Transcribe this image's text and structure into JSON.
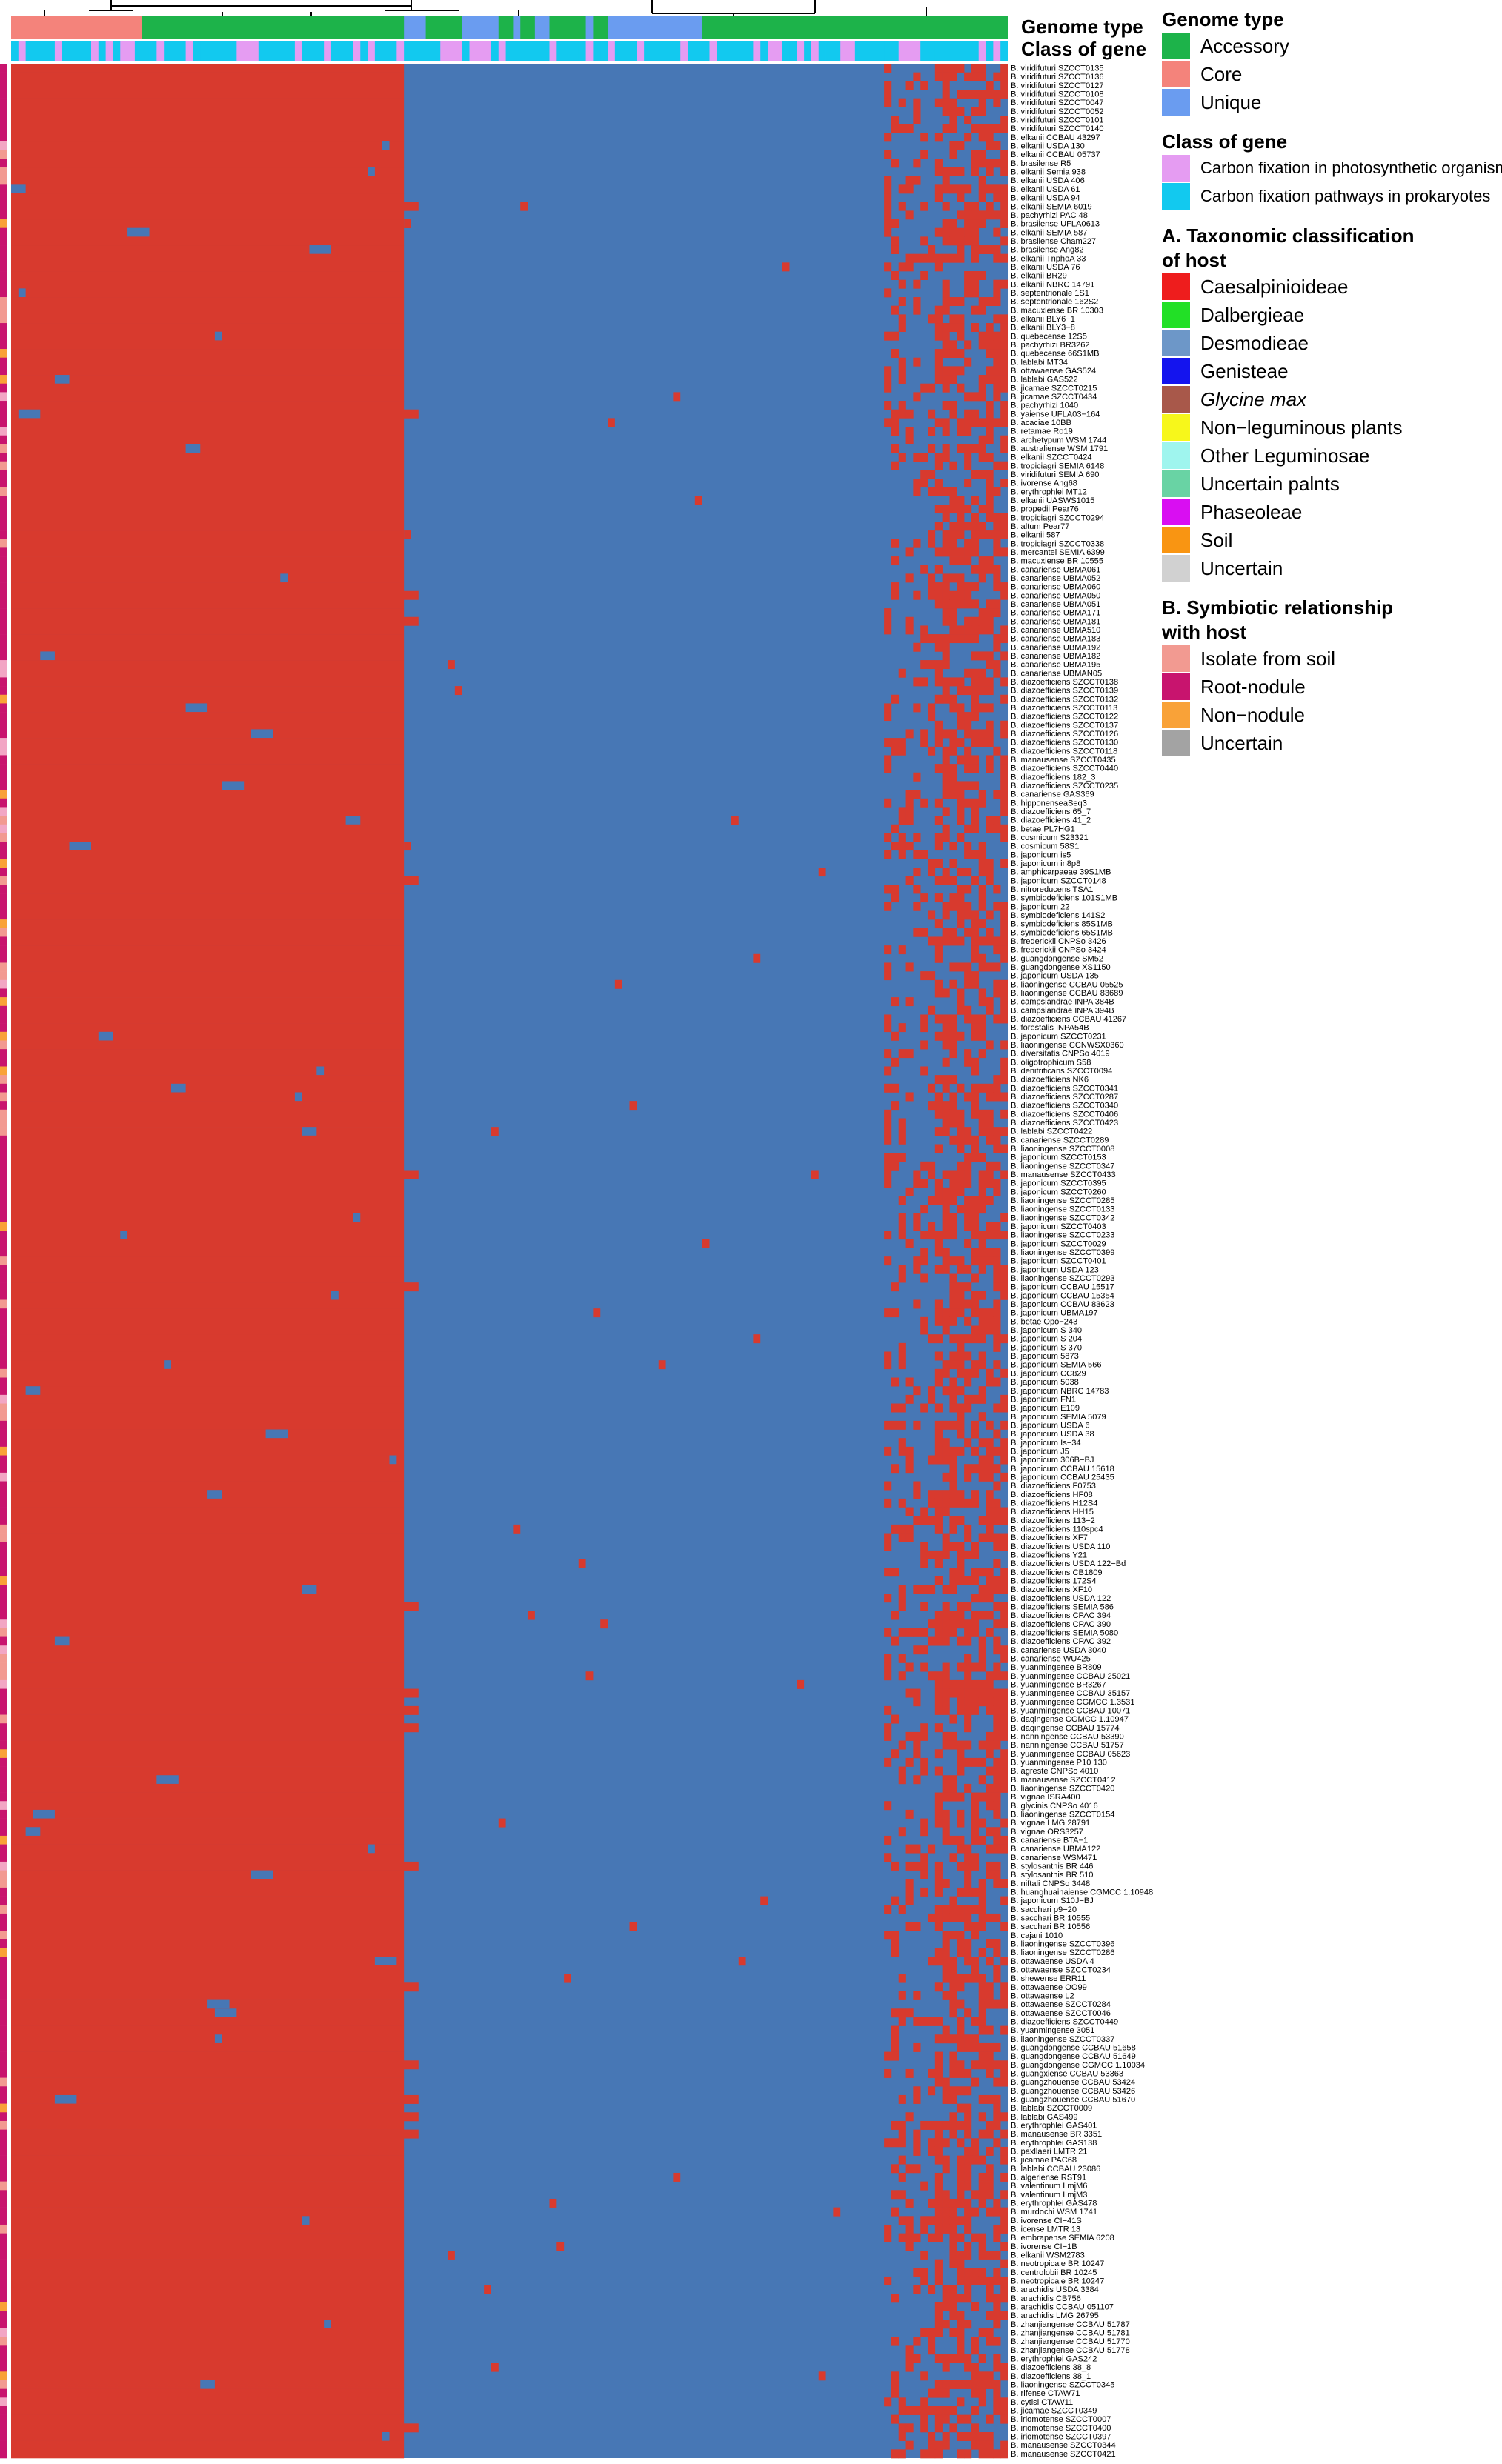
{
  "annotation_labels": {
    "genome_type": "Genome type",
    "class_of_gene": "Class of gene"
  },
  "legend": {
    "genome_type": {
      "title": "Genome type",
      "items": [
        {
          "label": "Accessory",
          "color": "#1db34a"
        },
        {
          "label": "Core",
          "color": "#f4837b"
        },
        {
          "label": "Unique",
          "color": "#6a9cf0"
        }
      ]
    },
    "class_of_gene": {
      "title": "Class of gene",
      "items": [
        {
          "label": "Carbon fixation in photosynthetic organisms",
          "color": "#e59cf2"
        },
        {
          "label": "Carbon fixation pathways in prokaryotes",
          "color": "#12c9ef"
        }
      ]
    },
    "taxonomy": {
      "title_line1": "A. Taxonomic classification",
      "title_line2": "of host",
      "items": [
        {
          "label": "Caesalpinioideae",
          "color": "#ee1d1d",
          "italic": false
        },
        {
          "label": "Dalbergieae",
          "color": "#22e026",
          "italic": false
        },
        {
          "label": "Desmodieae",
          "color": "#6d97c8",
          "italic": false
        },
        {
          "label": "Genisteae",
          "color": "#1414ee",
          "italic": false
        },
        {
          "label": "Glycine max",
          "color": "#a8584a",
          "italic": true
        },
        {
          "label": "Non−leguminous plants",
          "color": "#f7f71b",
          "italic": false
        },
        {
          "label": "Other Leguminosae",
          "color": "#9ff5ee",
          "italic": false
        },
        {
          "label": "Uncertain palnts",
          "color": "#69d3a4",
          "italic": false
        },
        {
          "label": "Phaseoleae",
          "color": "#d90ef2",
          "italic": false
        },
        {
          "label": "Soil",
          "color": "#f99512",
          "italic": false
        },
        {
          "label": "Uncertain",
          "color": "#d1d1d1",
          "italic": false
        }
      ]
    },
    "symbiosis": {
      "title_line1": "B. Symbiotic relationship",
      "title_line2": "with host",
      "items": [
        {
          "label": "Isolate from soil",
          "color": "#f29a91"
        },
        {
          "label": "Root-nodule",
          "color": "#c8146e"
        },
        {
          "label": "Non−nodule",
          "color": "#f9a238"
        },
        {
          "label": "Uncertain",
          "color": "#a3a3a3"
        }
      ]
    }
  },
  "chart_data": {
    "type": "heatmap",
    "value_colors": {
      "present": "#d83a2e",
      "absent": "#4777b5"
    },
    "n_genes": 137,
    "genome_type_blocks": [
      {
        "type": "Core",
        "n": 18
      },
      {
        "type": "Accessory",
        "n": 36
      },
      {
        "type": "Unique",
        "n": 3
      },
      {
        "type": "Accessory",
        "n": 5
      },
      {
        "type": "Unique",
        "n": 5
      },
      {
        "type": "Accessory",
        "n": 2
      },
      {
        "type": "Unique",
        "n": 1
      },
      {
        "type": "Accessory",
        "n": 2
      },
      {
        "type": "Unique",
        "n": 2
      },
      {
        "type": "Accessory",
        "n": 5
      },
      {
        "type": "Unique",
        "n": 1
      },
      {
        "type": "Accessory",
        "n": 2
      },
      {
        "type": "Unique",
        "n": 13
      },
      {
        "type": "Accessory",
        "n": 42
      }
    ],
    "rows": [
      "B. viridifuturi SZCCT0135",
      "B. viridifuturi SZCCT0136",
      "B. viridifuturi SZCCT0127",
      "B. viridifuturi SZCCT0108",
      "B. viridifuturi SZCCT0047",
      "B. viridifuturi SZCCT0052",
      "B. viridifuturi SZCCT0101",
      "B. viridifuturi SZCCT0140",
      "B. elkanii CCBAU 43297",
      "B. elkanii USDA 130",
      "B. elkanii CCBAU 05737",
      "B. brasilense R5",
      "B. elkanii Semia 938",
      "B. elkanii USDA 406",
      "B. elkanii USDA 61",
      "B. elkanii USDA 94",
      "B. elkanii SEMIA 6019",
      "B. pachyrhizi PAC 48",
      "B. brasilense UFLA0613",
      "B. elkanii SEMIA 587",
      "B. brasilense Cham227",
      "B. brasilense Ang82",
      "B. elkanii TnphoA 33",
      "B. elkanii USDA 76",
      "B. elkanii BR29",
      "B. elkanii NBRC 14791",
      "B. septentrionale 1S1",
      "B. septentrionale 162S2",
      "B. macuxiense BR 10303",
      "B. elkanii BLY6−1",
      "B. elkanii BLY3−8",
      "B. quebecense 12S5",
      "B. pachyrhizi BR3262",
      "B. quebecense 66S1MB",
      "B. lablabi MT34",
      "B. ottawaense GAS524",
      "B. lablabi GAS522",
      "B. jicamae SZCCT0215",
      "B. jicamae SZCCT0434",
      "B. pachyrhizi 1040",
      "B. yaiense UFLA03−164",
      "B. acaciae 10BB",
      "B. retamae Ro19",
      "B. archetypum WSM 1744",
      "B. australiense WSM 1791",
      "B. elkanii SZCCT0424",
      "B. tropiciagri SEMIA 6148",
      "B. viridifuturi SEMIA 690",
      "B. ivorense Ang68",
      "B. erythrophlei MT12",
      "B. elkanii UASWS1015",
      "B. propedii Pear76",
      "B. tropiciagri SZCCT0294",
      "B. altum Pear77",
      "B. elkanii 587",
      "B. tropiciagri SZCCT0338",
      "B. mercantei SEMIA 6399",
      "B. macuxiense BR 10555",
      "B. canariense UBMA061",
      "B. canariense UBMA052",
      "B. canariense UBMA060",
      "B. canariense UBMA050",
      "B. canariense UBMA051",
      "B. canariense UBMA171",
      "B. canariense UBMA181",
      "B. canariense UBMA510",
      "B. canariense UBMA183",
      "B. canariense UBMA192",
      "B. canariense UBMA182",
      "B. canariense UBMA195",
      "B. canariense UBMAN05",
      "B. diazoefficiens SZCCT0138",
      "B. diazoefficiens SZCCT0139",
      "B. diazoefficiens SZCCT0132",
      "B. diazoefficiens SZCCT0113",
      "B. diazoefficiens SZCCT0122",
      "B. diazoefficiens SZCCT0137",
      "B. diazoefficiens SZCCT0126",
      "B. diazoefficiens SZCCT0130",
      "B. diazoefficiens SZCCT0118",
      "B. manausense SZCCT0435",
      "B. diazoefficiens SZCCT0440",
      "B. diazoefficiens 182_3",
      "B. diazoefficiens SZCCT0235",
      "B. canariense GAS369",
      "B. hipponenseaSeq3",
      "B. diazoefficiens 65_7",
      "B. diazoefficiens 41_2",
      "B. betae PL7HG1",
      "B. cosmicum S23321",
      "B. cosmicum 58S1",
      "B. japonicum is5",
      "B. japonicum in8p8",
      "B. amphicarpaeae 39S1MB",
      "B. japonicum SZCCT0148",
      "B. nitroreducens TSA1",
      "B. symbiodeficiens 101S1MB",
      "B. japonicum 22",
      "B. symbiodeficiens 141S2",
      "B. symbiodeficiens 85S1MB",
      "B. symbiodeficiens 65S1MB",
      "B. frederickii CNPSo 3426",
      "B. frederickii CNPSo 3424",
      "B. guangdongense SM52",
      "B. guangdongense XS1150",
      "B. japonicum USDA 135",
      "B. liaoningense CCBAU 05525",
      "B. liaoningense CCBAU 83689",
      "B. campsiandrae INPA 384B",
      "B. campsiandrae INPA 394B",
      "B. diazoefficiens CCBAU 41267",
      "B. forestalis INPA54B",
      "B. japonicum SZCCT0231",
      "B. liaoningense CCNWSX0360",
      "B. diversitatis CNPSo 4019",
      "B. oligotrophicum S58",
      "B. denitrificans SZCCT0094",
      "B. diazoefficiens NK6",
      "B. diazoefficiens SZCCT0341",
      "B. diazoefficiens SZCCT0287",
      "B. diazoefficiens SZCCT0340",
      "B. diazoefficiens SZCCT0406",
      "B. diazoefficiens SZCCT0423",
      "B. lablabi SZCCT0422",
      "B. canariense SZCCT0289",
      "B. liaoningense SZCCT0008",
      "B. japonicum SZCCT0153",
      "B. liaoningense SZCCT0347",
      "B. manausense SZCCT0433",
      "B. japonicum SZCCT0395",
      "B. japonicum SZCCT0260",
      "B. liaoningense SZCCT0285",
      "B. liaoningense SZCCT0133",
      "B. liaoningense SZCCT0342",
      "B. japonicum SZCCT0403",
      "B. liaoningense SZCCT0233",
      "B. japonicum SZCCT0029",
      "B. liaoningense SZCCT0399",
      "B. japonicum SZCCT0401",
      "B. japonicum USDA 123",
      "B. liaoningense SZCCT0293",
      "B. japonicum CCBAU 15517",
      "B. japonicum CCBAU 15354",
      "B. japonicum CCBAU 83623",
      "B. japonicum UBMA197",
      "B. betae Opo−243",
      "B. japonicum S 340",
      "B. japonicum S 204",
      "B. japonicum S 370",
      "B. japonicum 5873",
      "B. japonicum SEMIA 566",
      "B. japonicum CC829",
      "B. japonicum 5038",
      "B. japonicum NBRC 14783",
      "B. japonicum FN1",
      "B. japonicum E109",
      "B. japonicum SEMIA 5079",
      "B. japonicum USDA 6",
      "B. japonicum USDA 38",
      "B. japonicum Is−34",
      "B. japonicum J5",
      "B. japonicum 306B−BJ",
      "B. japonicum CCBAU 15618",
      "B. japonicum CCBAU 25435",
      "B. diazoefficiens F0753",
      "B. diazoefficiens HF08",
      "B. diazoefficiens H12S4",
      "B. diazoefficiens HH15",
      "B. diazoefficiens 113−2",
      "B. diazoefficiens 110spc4",
      "B. diazoefficiens XF7",
      "B. diazoefficiens USDA 110",
      "B. diazoefficiens Y21",
      "B. diazoefficiens USDA 122−Bd",
      "B. diazoefficiens CB1809",
      "B. diazoefficiens 172S4",
      "B. diazoefficiens XF10",
      "B. diazoefficiens USDA 122",
      "B. diazoefficiens SEMIA 586",
      "B. diazoefficiens CPAC 394",
      "B. diazoefficiens CPAC 390",
      "B. diazoefficiens SEMIA 5080",
      "B. diazoefficiens CPAC 392",
      "B. canariense USDA 3040",
      "B. canariense WU425",
      "B. yuanmingense BR809",
      "B. yuanmingense CCBAU 25021",
      "B. yuanmingense BR3267",
      "B. yuanmingense CCBAU 35157",
      "B. yuanmingense CGMCC 1.3531",
      "B. yuanmingense CCBAU 10071",
      "B. daqingense CGMCC 1.10947",
      "B. daqingense CCBAU 15774",
      "B. nanningense CCBAU 53390",
      "B. nanningense CCBAU 51757",
      "B. yuanmingense CCBAU 05623",
      "B. yuanmingense P10 130",
      "B. agreste CNPSo 4010",
      "B. manausense SZCCT0412",
      "B. liaoningense SZCCT0420",
      "B. vignae ISRA400",
      "B. glycinis CNPSo 4016",
      "B. liaoningense SZCCT0154",
      "B. vignae LMG 28791",
      "B. vignae ORS3257",
      "B. canariense BTA−1",
      "B. canariense UBMA122",
      "B. canariense WSM471",
      "B. stylosanthis BR 446",
      "B. stylosanthis BR 510",
      "B. niftali CNPSo 3448",
      "B. huanghuaihaiense CGMCC 1.10948",
      "B. japonicum S10J−BJ",
      "B. sacchari p9−20",
      "B. sacchari BR 10555",
      "B. sacchari BR 10556",
      "B. cajani 1010",
      "B. liaoningense SZCCT0396",
      "B. liaoningense SZCCT0286",
      "B. ottawaense USDA 4",
      "B. ottawaense SZCCT0234",
      "B. shewense ERR11",
      "B. ottawaense OO99",
      "B. ottawaense L2",
      "B. ottawaense SZCCT0284",
      "B. ottawaense SZCCT0046",
      "B. diazoefficiens SZCCT0449",
      "B. yuanmingense 3051",
      "B. liaoningense SZCCT0337",
      "B. guangdongense CCBAU 51658",
      "B. guangdongense CCBAU 51649",
      "B. guangdongense CGMCC 1.10034",
      "B. guangxiense CCBAU 53363",
      "B. guangzhouense CCBAU 53424",
      "B. guangzhouense CCBAU 53426",
      "B. guangzhouense CCBAU 51670",
      "B. lablabi SZCCT0009",
      "B. lablabi GAS499",
      "B. erythrophlei GAS401",
      "B. manausense BR 3351",
      "B. erythrophlei GAS138",
      "B. paxllaeri LMTR 21",
      "B. jicamae PAC68",
      "B. lablabi CCBAU 23086",
      "B. algeriense RST91",
      "B. valentinum LmjM6",
      "B. valentinum LmjM3",
      "B. erythrophlei GAS478",
      "B. murdochi WSM 1741",
      "B. ivorense CI−41S",
      "B. icense LMTR 13",
      "B. embrapense SEMIA 6208",
      "B. ivorense CI−1B",
      "B. elkanii WSM2783",
      "B. neotropicale BR 10247",
      "B. centrolobii BR 10245",
      "B. neotropicale BR 10247",
      "B. arachidis USDA 3384",
      "B. arachidis CB756",
      "B. arachidis CCBAU 051107",
      "B. arachidis LMG 26795",
      "B. zhanjiangense CCBAU 51787",
      "B. zhanjiangense CCBAU 51781",
      "B. zhanjiangense CCBAU 51770",
      "B. zhanjiangense CCBAU 51778",
      "B. erythrophlei GAS242",
      "B. diazoefficiens 38_8",
      "B. diazoefficiens 38_1",
      "B. liaoningense SZCCT0345",
      "B. rifense CTAW71",
      "B. cytisi CTAW11",
      "B. jicamae SZCCT0349",
      "B. iriomotense SZCCT0007",
      "B. iriomotense SZCCT0400",
      "B. iriomotense SZCCT0397",
      "B. manausense SZCCT0344",
      "B. manausense SZCCT0421"
    ]
  }
}
